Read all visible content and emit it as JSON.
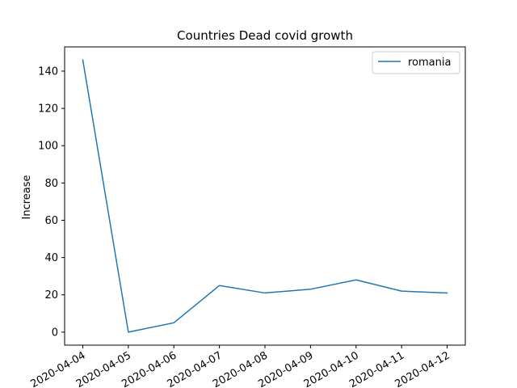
{
  "chart_data": {
    "type": "line",
    "title": "Countries Dead covid growth",
    "xlabel": "",
    "ylabel": "Increase",
    "categories": [
      "2020-04-04",
      "2020-04-05",
      "2020-04-06",
      "2020-04-07",
      "2020-04-08",
      "2020-04-09",
      "2020-04-10",
      "2020-04-11",
      "2020-04-12"
    ],
    "series": [
      {
        "name": "romania",
        "color": "#1f77b4",
        "values": [
          146,
          0,
          5,
          25,
          21,
          23,
          28,
          22,
          21
        ]
      }
    ],
    "ylim": [
      -7,
      153
    ],
    "yticks": [
      0,
      20,
      40,
      60,
      80,
      100,
      120,
      140
    ],
    "grid": false,
    "legend": "upper right"
  }
}
